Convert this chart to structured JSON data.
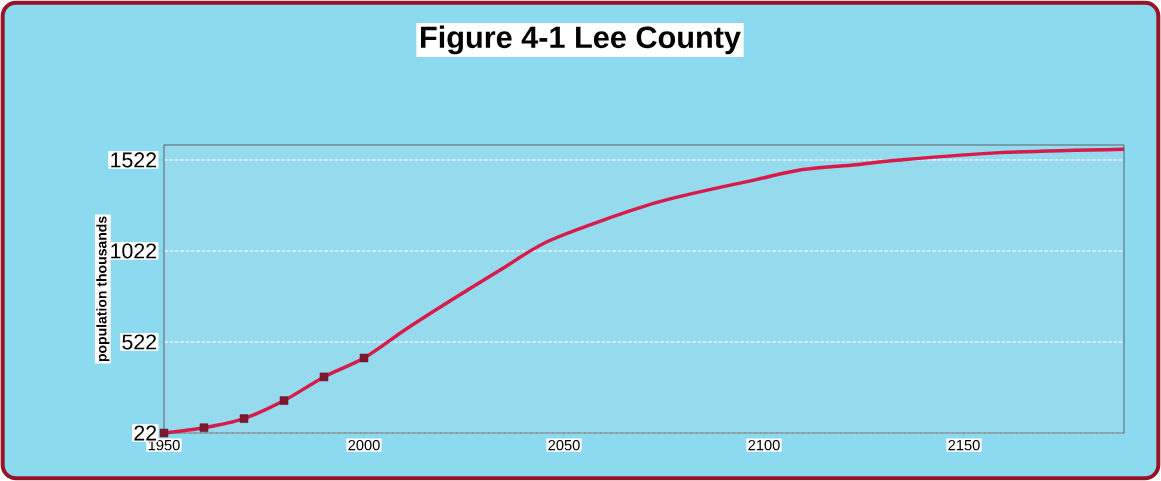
{
  "chart_data": {
    "type": "line",
    "title": "Figure 4-1   Lee County",
    "ylabel": "population thousands",
    "xlim": [
      1950,
      2190
    ],
    "ylim": [
      22,
      1604
    ],
    "xticks": [
      1950,
      2000,
      2050,
      2100,
      2150
    ],
    "yticks": [
      22,
      522,
      1022,
      1522
    ],
    "grid": "y",
    "series": [
      {
        "color": "#d81b4a",
        "marker": "none",
        "x": [
          1950,
          1960,
          1970,
          1980,
          1990,
          2000,
          2010,
          2018,
          2026,
          2035,
          2047,
          2073,
          2098,
          2109,
          2123,
          2134,
          2159,
          2190
        ],
        "values": [
          22,
          51,
          101,
          200,
          330,
          434,
          585,
          699,
          809,
          930,
          1085,
          1287,
          1414,
          1467,
          1496,
          1522,
          1562,
          1581
        ]
      },
      {
        "type": "scatter",
        "color": "#7a1830",
        "marker": "square",
        "x": [
          1950,
          1960,
          1970,
          1980,
          1990,
          2000
        ],
        "values": [
          22,
          51,
          101,
          200,
          330,
          434
        ]
      }
    ]
  }
}
